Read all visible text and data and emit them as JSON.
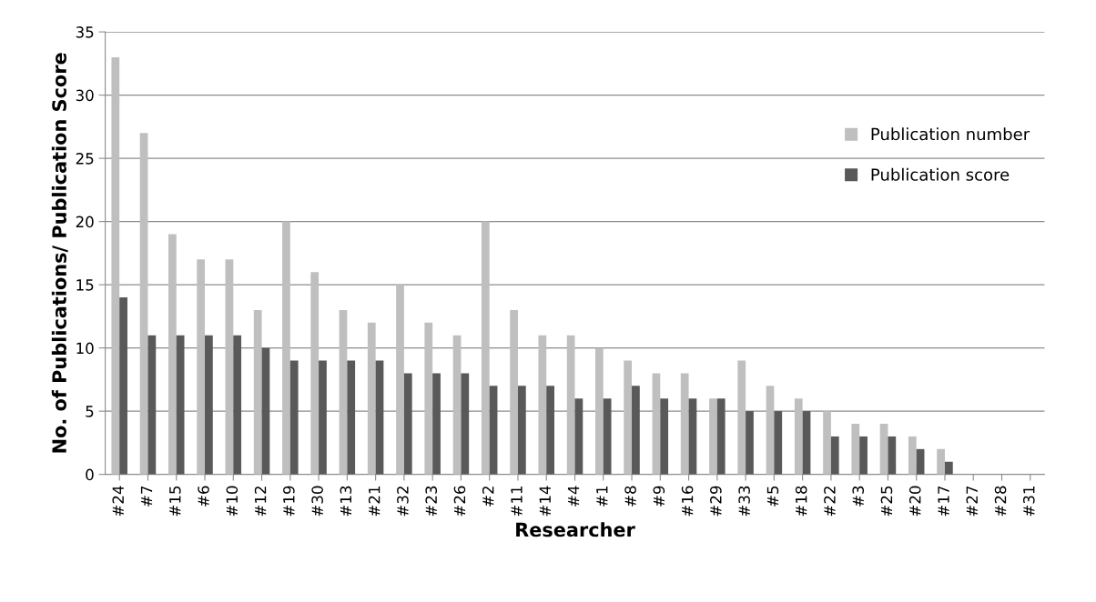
{
  "chart_data": {
    "type": "bar",
    "xlabel": "Researcher",
    "ylabel": "No. of Publications/ Publication Score",
    "categories": [
      "#24",
      "#7",
      "#15",
      "#6",
      "#10",
      "#12",
      "#19",
      "#30",
      "#13",
      "#21",
      "#32",
      "#23",
      "#26",
      "#2",
      "#11",
      "#14",
      "#4",
      "#1",
      "#8",
      "#9",
      "#16",
      "#29",
      "#33",
      "#5",
      "#18",
      "#22",
      "#3",
      "#25",
      "#20",
      "#17",
      "#27",
      "#28",
      "#31"
    ],
    "series": [
      {
        "name": "Publication number",
        "color": "#bfbfbf",
        "values": [
          33,
          27,
          19,
          17,
          17,
          13,
          20,
          16,
          13,
          12,
          15,
          12,
          11,
          20,
          13,
          11,
          11,
          10,
          9,
          8,
          8,
          6,
          9,
          7,
          6,
          5,
          4,
          4,
          3,
          2,
          0,
          0,
          0
        ]
      },
      {
        "name": "Publication score",
        "color": "#595959",
        "values": [
          14,
          11,
          11,
          11,
          11,
          10,
          9,
          9,
          9,
          9,
          8,
          8,
          8,
          7,
          7,
          7,
          6,
          6,
          7,
          6,
          6,
          6,
          5,
          5,
          5,
          3,
          3,
          3,
          2,
          1,
          0,
          0,
          0
        ]
      }
    ],
    "ylim": [
      0,
      35
    ],
    "yticks": [
      0,
      5,
      10,
      15,
      20,
      25,
      30,
      35
    ],
    "grid": "y",
    "legend": "right"
  }
}
